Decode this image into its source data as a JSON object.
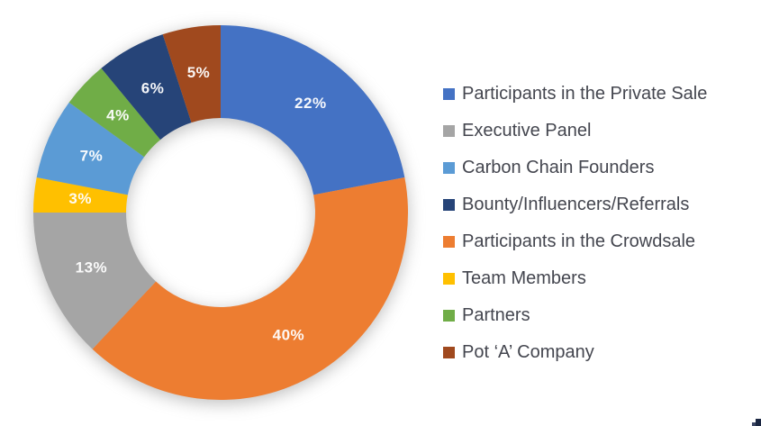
{
  "chart_data": {
    "type": "pie",
    "subtype": "donut",
    "title": "",
    "hole_ratio": 0.5,
    "start_angle_deg": 0,
    "direction": "clockwise",
    "data_label_format": "percent",
    "data_label_color": "#FFFFFF",
    "background_color": "#FFFFFF",
    "legend_position": "right",
    "segments": [
      {
        "label": "Participants in the Private Sale",
        "value": 22,
        "display": "22%",
        "color": "#4472C4"
      },
      {
        "label": "Participants in the Crowdsale",
        "value": 40,
        "display": "40%",
        "color": "#ED7D31"
      },
      {
        "label": "Executive Panel",
        "value": 13,
        "display": "13%",
        "color": "#A5A5A5"
      },
      {
        "label": "Team Members",
        "value": 3,
        "display": "3%",
        "color": "#FFC000"
      },
      {
        "label": "Carbon Chain Founders",
        "value": 7,
        "display": "7%",
        "color": "#5B9BD5"
      },
      {
        "label": "Partners",
        "value": 4,
        "display": "4%",
        "color": "#70AD47"
      },
      {
        "label": "Bounty/Influencers/Referrals",
        "value": 6,
        "display": "6%",
        "color": "#264478"
      },
      {
        "label": "Pot ‘A’ Company",
        "value": 5,
        "display": "5%",
        "color": "#A0491E"
      }
    ],
    "legend": [
      {
        "label": "Participants in the Private Sale",
        "color": "#4472C4"
      },
      {
        "label": "Executive Panel",
        "color": "#A5A5A5"
      },
      {
        "label": "Carbon Chain Founders",
        "color": "#5B9BD5"
      },
      {
        "label": "Bounty/Influencers/Referrals",
        "color": "#264478"
      },
      {
        "label": "Participants in the Crowdsale",
        "color": "#ED7D31"
      },
      {
        "label": "Team Members",
        "color": "#FFC000"
      },
      {
        "label": "Partners",
        "color": "#70AD47"
      },
      {
        "label": "Pot ‘A’ Company",
        "color": "#A0491E"
      }
    ]
  }
}
